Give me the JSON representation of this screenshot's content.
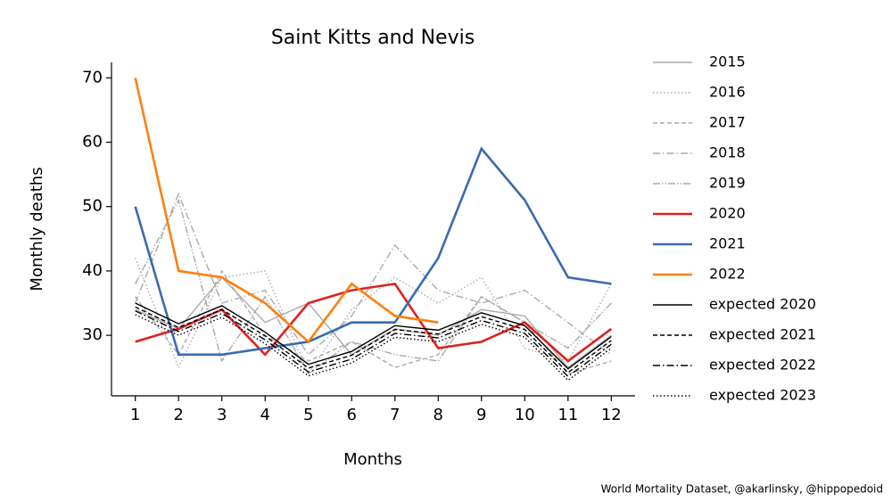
{
  "chart_data": {
    "type": "line",
    "title": "Saint Kitts and Nevis",
    "xlabel": "Months",
    "ylabel": "Monthly deaths",
    "source": "World Mortality Dataset, @akarlinsky, @hippopedoid",
    "x": [
      1,
      2,
      3,
      4,
      5,
      6,
      7,
      8,
      9,
      10,
      11,
      12
    ],
    "xlim": [
      0.45,
      12.55
    ],
    "xticks": [
      1,
      2,
      3,
      4,
      5,
      6,
      7,
      8,
      9,
      10,
      11,
      12
    ],
    "ylim": [
      20.6,
      72.4
    ],
    "yticks": [
      30,
      40,
      50,
      60,
      70
    ],
    "legend": "outside right",
    "series": [
      {
        "name": "2015",
        "color": "#aaaaaa",
        "linestyle": "solid",
        "values": [
          34,
          31,
          39,
          32,
          35,
          27,
          31,
          30,
          34,
          33,
          25,
          30
        ]
      },
      {
        "name": "2016",
        "color": "#aaaaaa",
        "linestyle": "dotted",
        "values": [
          42,
          25,
          39,
          40,
          24,
          34,
          39,
          35,
          39,
          28,
          26,
          38
        ]
      },
      {
        "name": "2017",
        "color": "#aaaaaa",
        "linestyle": "dashed",
        "values": [
          36,
          27,
          40,
          30,
          26,
          29,
          25,
          27,
          36,
          32,
          24,
          26
        ]
      },
      {
        "name": "2018",
        "color": "#aaaaaa",
        "linestyle": "dashdot",
        "values": [
          35,
          52,
          35,
          37,
          27,
          33,
          44,
          37,
          35,
          37,
          32,
          27
        ]
      },
      {
        "name": "2019",
        "color": "#aaaaaa",
        "linestyle": "dashdotdot",
        "values": [
          38,
          51,
          26,
          36,
          24,
          29,
          27,
          26,
          36,
          32,
          28,
          35
        ]
      },
      {
        "name": "2020",
        "color": "#dd2222",
        "linestyle": "solid",
        "bold": true,
        "values": [
          29,
          31,
          34,
          27,
          35,
          37,
          38,
          28,
          29,
          32,
          26,
          31
        ]
      },
      {
        "name": "2021",
        "color": "#3a6bb0",
        "linestyle": "solid",
        "bold": true,
        "values": [
          50,
          27,
          27,
          28,
          29,
          32,
          32,
          42,
          59,
          51,
          39,
          38
        ]
      },
      {
        "name": "2022",
        "color": "#ff7f0e",
        "linestyle": "solid",
        "bold": true,
        "values": [
          70,
          40,
          39,
          35,
          29,
          38,
          33,
          32,
          null,
          null,
          null,
          null
        ]
      },
      {
        "name": "expected 2020",
        "color": "#000000",
        "linestyle": "solid",
        "values": [
          35,
          31.8,
          34.6,
          30.5,
          25.5,
          27.5,
          31.5,
          30.8,
          33.5,
          31.5,
          24.8,
          29.8
        ]
      },
      {
        "name": "expected 2021",
        "color": "#000000",
        "linestyle": "dashed",
        "values": [
          34.4,
          31.2,
          34,
          29.9,
          24.9,
          26.9,
          30.9,
          30.2,
          32.9,
          30.9,
          24.2,
          29.2
        ]
      },
      {
        "name": "expected 2022",
        "color": "#000000",
        "linestyle": "dashdot",
        "values": [
          33.8,
          30.6,
          33.4,
          29.3,
          24.3,
          26.3,
          30.3,
          29.6,
          32.3,
          30.3,
          23.6,
          28.6
        ]
      },
      {
        "name": "expected 2023",
        "color": "#000000",
        "linestyle": "dotted",
        "values": [
          33.2,
          30,
          32.8,
          28.7,
          23.7,
          25.7,
          29.7,
          29,
          31.7,
          29.7,
          23,
          28
        ]
      }
    ]
  }
}
